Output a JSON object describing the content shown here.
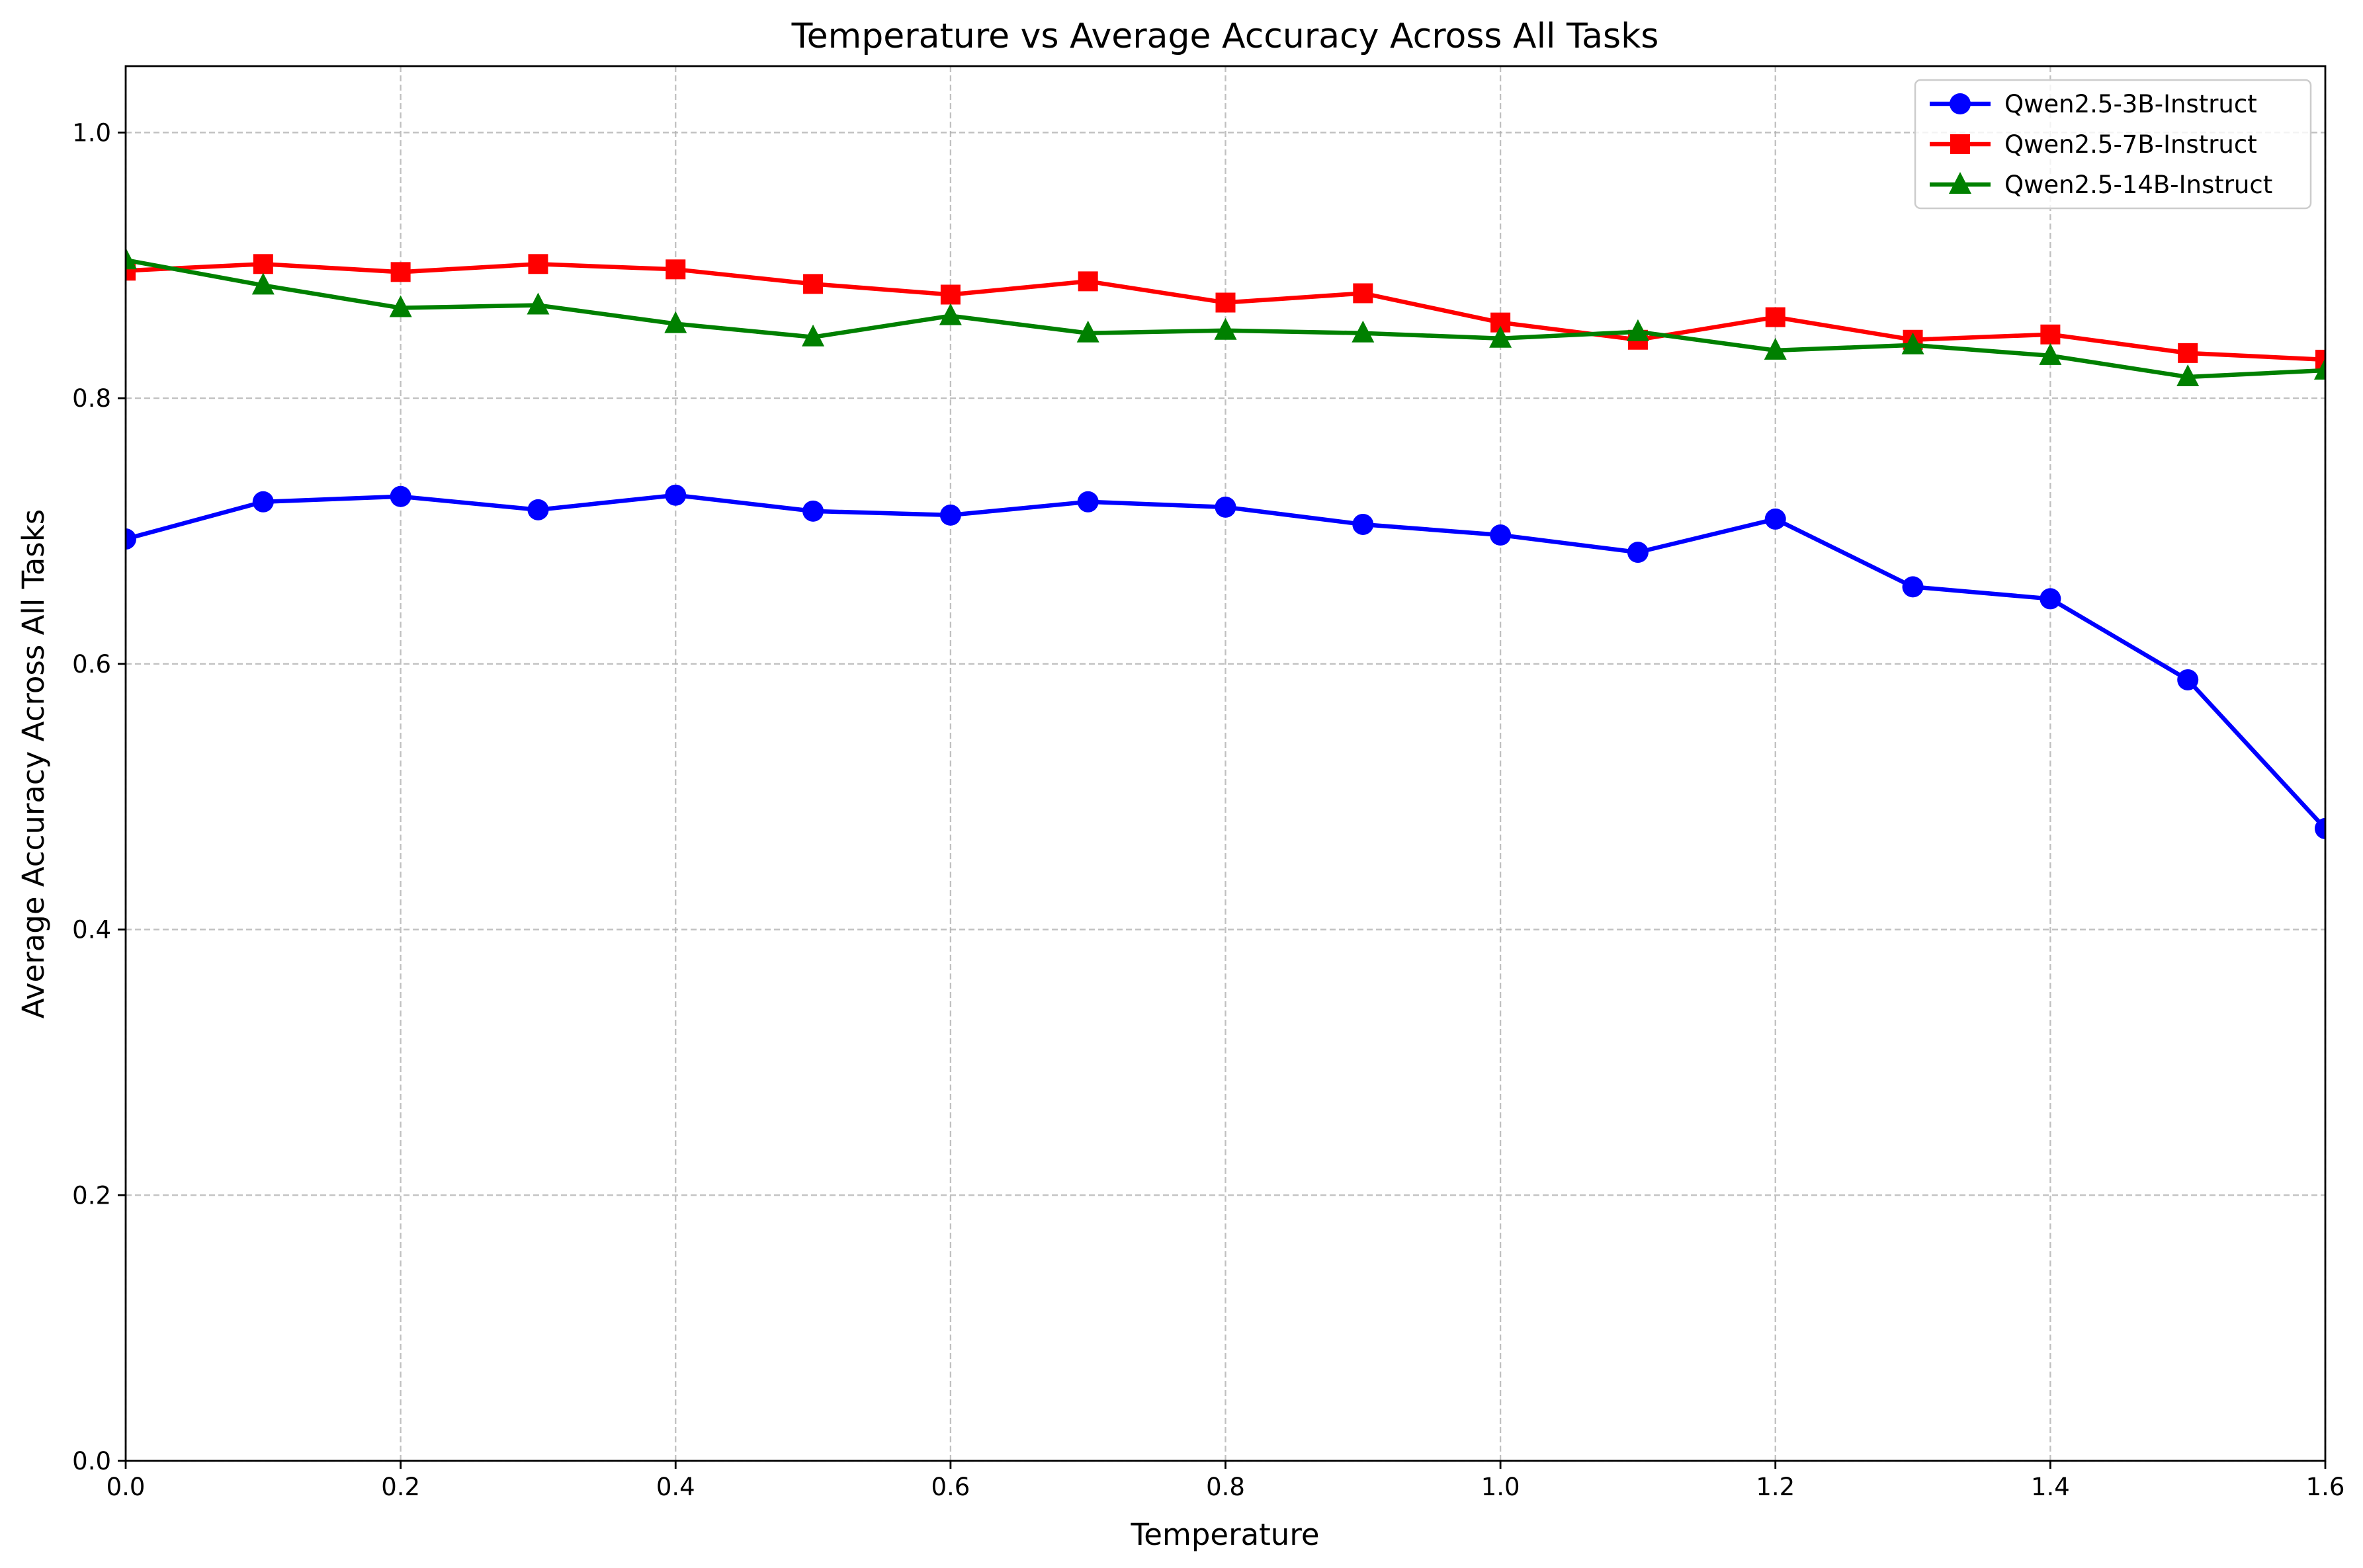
{
  "chart_data": {
    "type": "line",
    "title": "Temperature vs Average Accuracy Across All Tasks",
    "xlabel": "Temperature",
    "ylabel": "Average Accuracy Across All Tasks",
    "x": [
      0.0,
      0.1,
      0.2,
      0.3,
      0.4,
      0.5,
      0.6,
      0.7,
      0.8,
      0.9,
      1.0,
      1.1,
      1.2,
      1.3,
      1.4,
      1.5,
      1.6
    ],
    "xlim": [
      0.0,
      1.6
    ],
    "ylim": [
      0.0,
      1.05
    ],
    "xticks": [
      "0.0",
      "0.2",
      "0.4",
      "0.6",
      "0.8",
      "1.0",
      "1.2",
      "1.4",
      "1.6"
    ],
    "xtick_values": [
      0.0,
      0.2,
      0.4,
      0.6,
      0.8,
      1.0,
      1.2,
      1.4,
      1.6
    ],
    "yticks": [
      "0.0",
      "0.2",
      "0.4",
      "0.6",
      "0.8",
      "1.0"
    ],
    "ytick_values": [
      0.0,
      0.2,
      0.4,
      0.6,
      0.8,
      1.0
    ],
    "grid": true,
    "legend_position": "top-right",
    "series": [
      {
        "name": "Qwen2.5-3B-Instruct",
        "color": "#0000ff",
        "marker": "circle",
        "values": [
          0.694,
          0.722,
          0.726,
          0.716,
          0.727,
          0.715,
          0.712,
          0.722,
          0.718,
          0.705,
          0.697,
          0.684,
          0.709,
          0.658,
          0.649,
          0.588,
          0.476
        ]
      },
      {
        "name": "Qwen2.5-7B-Instruct",
        "color": "#ff0000",
        "marker": "square",
        "values": [
          0.896,
          0.901,
          0.895,
          0.901,
          0.897,
          0.886,
          0.878,
          0.888,
          0.872,
          0.879,
          0.857,
          0.844,
          0.861,
          0.844,
          0.848,
          0.834,
          0.829
        ]
      },
      {
        "name": "Qwen2.5-14B-Instruct",
        "color": "#008000",
        "marker": "triangle",
        "values": [
          0.904,
          0.885,
          0.868,
          0.87,
          0.856,
          0.846,
          0.862,
          0.849,
          0.851,
          0.849,
          0.845,
          0.85,
          0.836,
          0.84,
          0.832,
          0.816,
          0.821
        ]
      }
    ]
  }
}
